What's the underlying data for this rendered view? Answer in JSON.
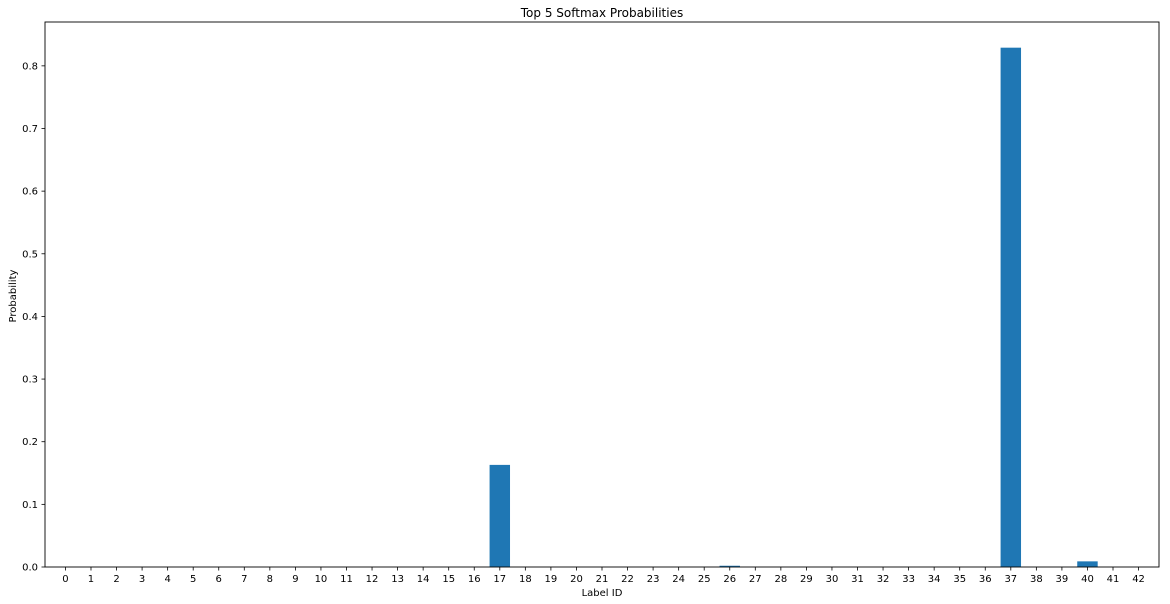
{
  "chart_data": {
    "type": "bar",
    "title": "Top 5 Softmax Probabilities",
    "xlabel": "Label ID",
    "ylabel": "Probability",
    "categories": [
      "0",
      "1",
      "2",
      "3",
      "4",
      "5",
      "6",
      "7",
      "8",
      "9",
      "10",
      "11",
      "12",
      "13",
      "14",
      "15",
      "16",
      "17",
      "18",
      "19",
      "20",
      "21",
      "22",
      "23",
      "24",
      "25",
      "26",
      "27",
      "28",
      "29",
      "30",
      "31",
      "32",
      "33",
      "34",
      "35",
      "36",
      "37",
      "38",
      "39",
      "40",
      "41",
      "42"
    ],
    "values": [
      0,
      0,
      0,
      0,
      0,
      0,
      0,
      0,
      0,
      0,
      0,
      0,
      0,
      0,
      0,
      0,
      0,
      0.163,
      0,
      0,
      0,
      0,
      0,
      0,
      0,
      0,
      0.002,
      0,
      0,
      0,
      0,
      0,
      0,
      0,
      0,
      0,
      0,
      0.829,
      0,
      0,
      0.009,
      0,
      0
    ],
    "ylim": [
      0,
      0.87
    ],
    "yticks": [
      0.0,
      0.1,
      0.2,
      0.3,
      0.4,
      0.5,
      0.6,
      0.7,
      0.8
    ],
    "ytick_labels": [
      "0.0",
      "0.1",
      "0.2",
      "0.3",
      "0.4",
      "0.5",
      "0.6",
      "0.7",
      "0.8"
    ],
    "grid": false,
    "bar_color": "#1f77b4"
  }
}
